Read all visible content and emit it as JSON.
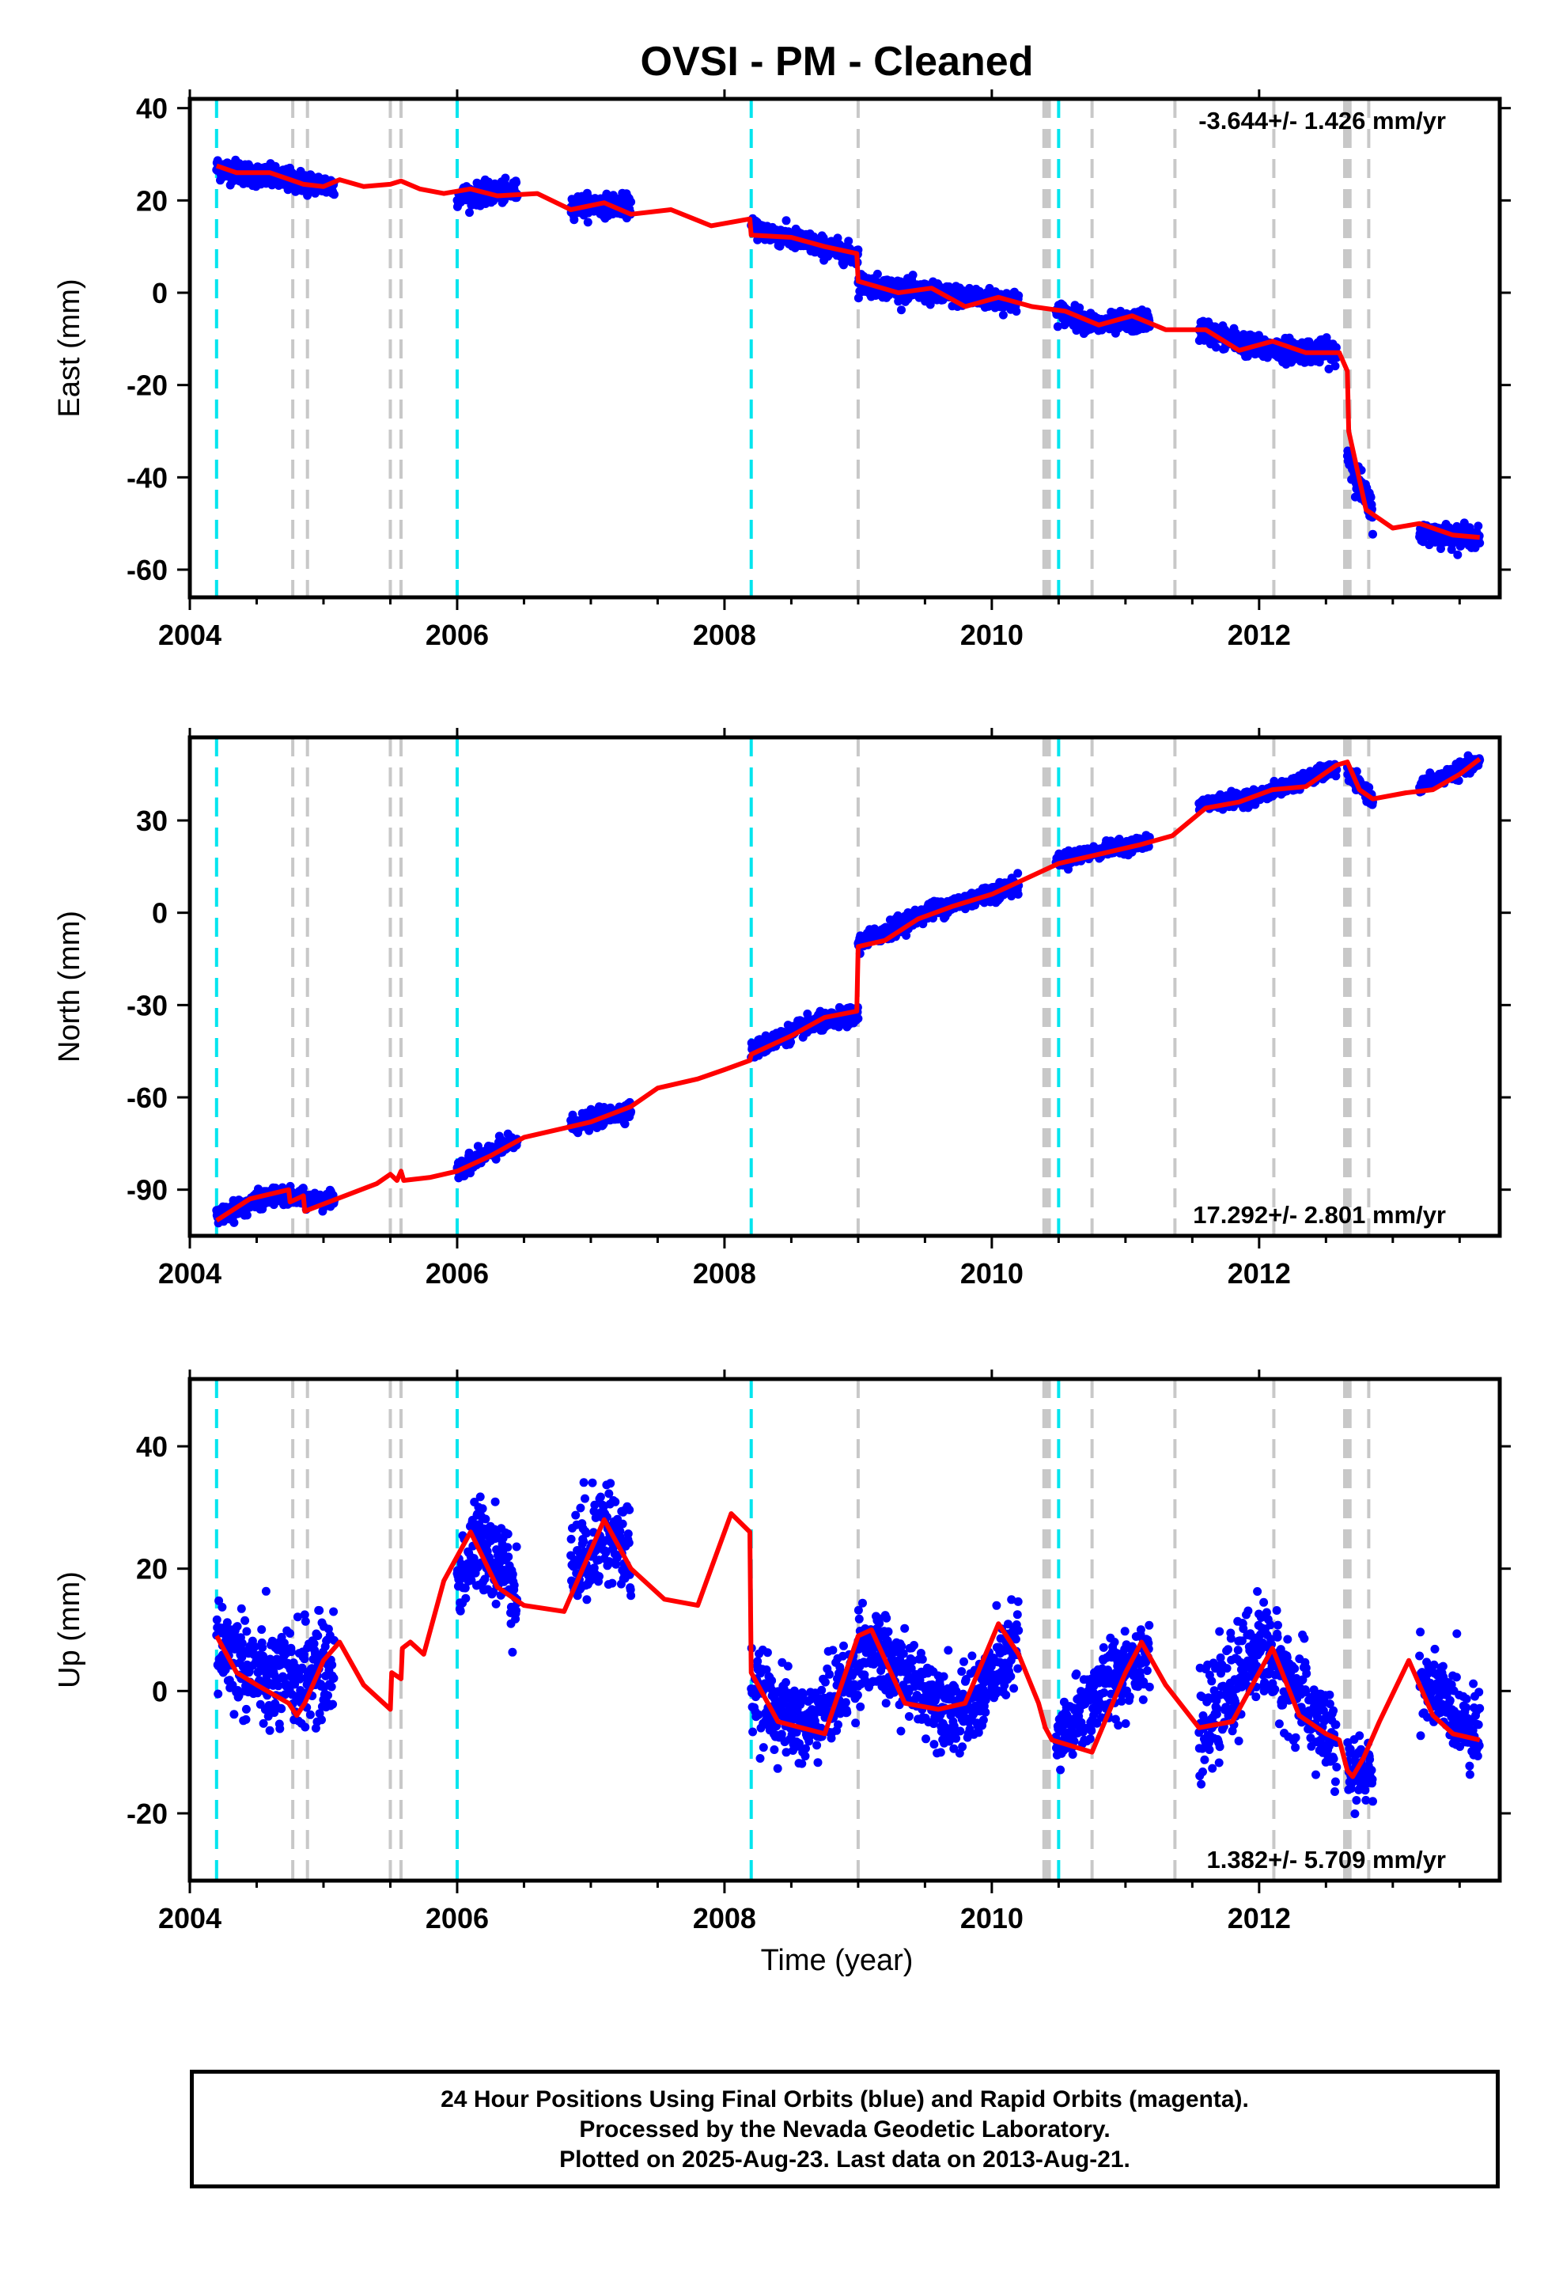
{
  "chart_data": [
    {
      "type": "scatter",
      "title": "OVSI  - PM - Cleaned",
      "ylabel": "East (mm)",
      "xlabel": "",
      "xlim": [
        2004.0,
        2013.8
      ],
      "ylim": [
        -66,
        42
      ],
      "xticks": [
        2004,
        2006,
        2008,
        2010,
        2012
      ],
      "yticks": [
        40,
        20,
        0,
        -20,
        -40,
        -60
      ],
      "grid": false,
      "rate_text": "-3.644+/- 1.426 mm/yr",
      "rate_position": "top-right",
      "marker_color": "#0000ff",
      "model_color": "#ff0000",
      "data_segments": [
        {
          "start": 2004.2,
          "end": 2005.08,
          "trend": [
            [
              2004.2,
              27
            ],
            [
              2004.6,
              25
            ],
            [
              2005.08,
              23
            ]
          ],
          "spread": 2.2
        },
        {
          "start": 2006.0,
          "end": 2006.45,
          "trend": [
            [
              2006.0,
              21
            ],
            [
              2006.45,
              22
            ]
          ],
          "spread": 2.0
        },
        {
          "start": 2006.85,
          "end": 2007.3,
          "trend": [
            [
              2006.85,
              19
            ],
            [
              2007.3,
              19
            ]
          ],
          "spread": 2.0
        },
        {
          "start": 2008.2,
          "end": 2009.0,
          "trend": [
            [
              2008.2,
              14
            ],
            [
              2008.6,
              11
            ],
            [
              2009.0,
              8
            ]
          ],
          "spread": 2.0
        },
        {
          "start": 2009.0,
          "end": 2010.2,
          "trend": [
            [
              2009.0,
              2
            ],
            [
              2009.5,
              0
            ],
            [
              2010.2,
              -2
            ]
          ],
          "spread": 2.0
        },
        {
          "start": 2010.48,
          "end": 2011.18,
          "trend": [
            [
              2010.48,
              -4
            ],
            [
              2010.8,
              -7
            ],
            [
              2011.18,
              -6
            ]
          ],
          "spread": 2.0
        },
        {
          "start": 2011.55,
          "end": 2012.58,
          "trend": [
            [
              2011.55,
              -8
            ],
            [
              2012.0,
              -12
            ],
            [
              2012.58,
              -13
            ]
          ],
          "spread": 2.2
        },
        {
          "start": 2012.66,
          "end": 2012.85,
          "trend": [
            [
              2012.66,
              -35
            ],
            [
              2012.85,
              -48
            ]
          ],
          "spread": 3.0
        },
        {
          "start": 2013.2,
          "end": 2013.65,
          "trend": [
            [
              2013.2,
              -52
            ],
            [
              2013.65,
              -53
            ]
          ],
          "spread": 2.0
        }
      ],
      "model": [
        [
          2004.2,
          27.5
        ],
        [
          2004.35,
          26.0
        ],
        [
          2004.6,
          26.0
        ],
        [
          2004.85,
          23.5
        ],
        [
          2005.0,
          23.0
        ],
        [
          2005.12,
          24.5
        ],
        [
          2005.3,
          23.0
        ],
        [
          2005.5,
          23.5
        ],
        [
          2005.58,
          24.2
        ],
        [
          2005.72,
          22.5
        ],
        [
          2005.9,
          21.5
        ],
        [
          2006.1,
          22.5
        ],
        [
          2006.3,
          21.0
        ],
        [
          2006.6,
          21.5
        ],
        [
          2006.85,
          18.0
        ],
        [
          2007.1,
          19.5
        ],
        [
          2007.3,
          17.0
        ],
        [
          2007.6,
          18.0
        ],
        [
          2007.9,
          14.5
        ],
        [
          2008.19,
          16.0
        ],
        [
          2008.2,
          12.5
        ],
        [
          2008.5,
          12.0
        ],
        [
          2008.75,
          10.0
        ],
        [
          2008.99,
          8.5
        ],
        [
          2009.0,
          2.5
        ],
        [
          2009.3,
          0.0
        ],
        [
          2009.55,
          1.0
        ],
        [
          2009.8,
          -3.0
        ],
        [
          2010.05,
          -1.0
        ],
        [
          2010.3,
          -3.0
        ],
        [
          2010.55,
          -4.0
        ],
        [
          2010.8,
          -7.0
        ],
        [
          2011.05,
          -5.0
        ],
        [
          2011.3,
          -8.0
        ],
        [
          2011.6,
          -8.0
        ],
        [
          2011.85,
          -12.5
        ],
        [
          2012.1,
          -10.5
        ],
        [
          2012.35,
          -13.0
        ],
        [
          2012.6,
          -13.0
        ],
        [
          2012.66,
          -17.0
        ],
        [
          2012.67,
          -30.0
        ],
        [
          2012.8,
          -47.0
        ],
        [
          2013.0,
          -51.0
        ],
        [
          2013.2,
          -50.0
        ],
        [
          2013.45,
          -52.5
        ],
        [
          2013.65,
          -53.0
        ]
      ]
    },
    {
      "type": "scatter",
      "title": "",
      "ylabel": "North (mm)",
      "xlabel": "",
      "xlim": [
        2004.0,
        2013.8
      ],
      "ylim": [
        -105,
        57
      ],
      "xticks": [
        2004,
        2006,
        2008,
        2010,
        2012
      ],
      "yticks": [
        30,
        0,
        -30,
        -60,
        -90
      ],
      "grid": false,
      "rate_text": "17.292+/- 2.801 mm/yr",
      "rate_position": "bottom-right",
      "marker_color": "#0000ff",
      "model_color": "#ff0000",
      "data_segments": [
        {
          "start": 2004.2,
          "end": 2005.08,
          "trend": [
            [
              2004.2,
              -99
            ],
            [
              2004.6,
              -92
            ],
            [
              2005.08,
              -94
            ]
          ],
          "spread": 2.5
        },
        {
          "start": 2006.0,
          "end": 2006.45,
          "trend": [
            [
              2006.0,
              -83
            ],
            [
              2006.45,
              -74
            ]
          ],
          "spread": 2.5
        },
        {
          "start": 2006.85,
          "end": 2007.3,
          "trend": [
            [
              2006.85,
              -69
            ],
            [
              2007.3,
              -64
            ]
          ],
          "spread": 2.5
        },
        {
          "start": 2008.2,
          "end": 2009.0,
          "trend": [
            [
              2008.2,
              -45
            ],
            [
              2008.6,
              -37
            ],
            [
              2009.0,
              -33
            ]
          ],
          "spread": 2.5
        },
        {
          "start": 2009.0,
          "end": 2010.2,
          "trend": [
            [
              2009.0,
              -10
            ],
            [
              2009.5,
              0
            ],
            [
              2010.2,
              9
            ]
          ],
          "spread": 2.5
        },
        {
          "start": 2010.48,
          "end": 2011.18,
          "trend": [
            [
              2010.48,
              17
            ],
            [
              2010.8,
              20
            ],
            [
              2011.18,
              23
            ]
          ],
          "spread": 2.0
        },
        {
          "start": 2011.55,
          "end": 2012.58,
          "trend": [
            [
              2011.55,
              35
            ],
            [
              2012.0,
              38
            ],
            [
              2012.58,
              47
            ]
          ],
          "spread": 2.0
        },
        {
          "start": 2012.66,
          "end": 2012.85,
          "trend": [
            [
              2012.66,
              45
            ],
            [
              2012.85,
              37
            ]
          ],
          "spread": 2.0
        },
        {
          "start": 2013.2,
          "end": 2013.65,
          "trend": [
            [
              2013.2,
              41
            ],
            [
              2013.65,
              49
            ]
          ],
          "spread": 2.0
        }
      ],
      "model": [
        [
          2004.2,
          -100
        ],
        [
          2004.45,
          -93
        ],
        [
          2004.74,
          -90
        ],
        [
          2004.75,
          -94
        ],
        [
          2004.85,
          -92
        ],
        [
          2004.86,
          -97
        ],
        [
          2005.1,
          -93
        ],
        [
          2005.4,
          -88
        ],
        [
          2005.5,
          -85
        ],
        [
          2005.55,
          -87
        ],
        [
          2005.58,
          -84
        ],
        [
          2005.6,
          -87
        ],
        [
          2005.8,
          -86
        ],
        [
          2006.0,
          -84
        ],
        [
          2006.25,
          -79
        ],
        [
          2006.5,
          -73
        ],
        [
          2006.8,
          -70
        ],
        [
          2007.0,
          -68
        ],
        [
          2007.3,
          -63
        ],
        [
          2007.5,
          -57
        ],
        [
          2007.8,
          -54
        ],
        [
          2008.0,
          -51
        ],
        [
          2008.19,
          -48
        ],
        [
          2008.2,
          -46
        ],
        [
          2008.5,
          -40
        ],
        [
          2008.75,
          -34
        ],
        [
          2008.99,
          -32
        ],
        [
          2009.0,
          -11
        ],
        [
          2009.2,
          -9
        ],
        [
          2009.45,
          -2
        ],
        [
          2009.7,
          2
        ],
        [
          2010.0,
          6
        ],
        [
          2010.2,
          10
        ],
        [
          2010.5,
          16
        ],
        [
          2010.8,
          19
        ],
        [
          2011.1,
          22
        ],
        [
          2011.35,
          25
        ],
        [
          2011.6,
          34
        ],
        [
          2011.85,
          36
        ],
        [
          2012.1,
          40
        ],
        [
          2012.35,
          41
        ],
        [
          2012.58,
          48
        ],
        [
          2012.66,
          49
        ],
        [
          2012.75,
          40
        ],
        [
          2012.85,
          37
        ],
        [
          2013.1,
          39
        ],
        [
          2013.3,
          40
        ],
        [
          2013.5,
          45
        ],
        [
          2013.65,
          50
        ]
      ]
    },
    {
      "type": "scatter",
      "title": "",
      "ylabel": "Up (mm)",
      "xlabel": "Time (year)",
      "xlim": [
        2004.0,
        2013.8
      ],
      "ylim": [
        -31,
        51
      ],
      "xticks": [
        2004,
        2006,
        2008,
        2010,
        2012
      ],
      "yticks": [
        40,
        20,
        0,
        -20
      ],
      "grid": false,
      "rate_text": "1.382+/- 5.709 mm/yr",
      "rate_position": "bottom-right",
      "marker_color": "#0000ff",
      "model_color": "#ff0000",
      "data_segments": [
        {
          "start": 2004.2,
          "end": 2005.08,
          "trend": [
            [
              2004.2,
              8
            ],
            [
              2004.6,
              1
            ],
            [
              2005.08,
              4
            ]
          ],
          "spread": 7.5
        },
        {
          "start": 2006.0,
          "end": 2006.45,
          "trend": [
            [
              2006.0,
              18
            ],
            [
              2006.2,
              25
            ],
            [
              2006.45,
              17
            ]
          ],
          "spread": 7.0
        },
        {
          "start": 2006.85,
          "end": 2007.3,
          "trend": [
            [
              2006.85,
              20
            ],
            [
              2007.1,
              27
            ],
            [
              2007.3,
              22
            ]
          ],
          "spread": 8.0
        },
        {
          "start": 2008.2,
          "end": 2009.0,
          "trend": [
            [
              2008.2,
              0
            ],
            [
              2008.6,
              -6
            ],
            [
              2009.0,
              3
            ]
          ],
          "spread": 6.0
        },
        {
          "start": 2009.0,
          "end": 2010.2,
          "trend": [
            [
              2009.0,
              8
            ],
            [
              2009.5,
              0
            ],
            [
              2009.8,
              -4
            ],
            [
              2010.2,
              8
            ]
          ],
          "spread": 6.0
        },
        {
          "start": 2010.48,
          "end": 2011.18,
          "trend": [
            [
              2010.48,
              -9
            ],
            [
              2010.8,
              0
            ],
            [
              2011.18,
              7
            ]
          ],
          "spread": 6.0
        },
        {
          "start": 2011.55,
          "end": 2012.58,
          "trend": [
            [
              2011.55,
              -8
            ],
            [
              2012.0,
              8
            ],
            [
              2012.58,
              -9
            ]
          ],
          "spread": 7.0
        },
        {
          "start": 2012.66,
          "end": 2012.85,
          "trend": [
            [
              2012.66,
              -14
            ],
            [
              2012.85,
              -13
            ]
          ],
          "spread": 5.0
        },
        {
          "start": 2013.2,
          "end": 2013.65,
          "trend": [
            [
              2013.2,
              2
            ],
            [
              2013.65,
              -7
            ]
          ],
          "spread": 5.5
        }
      ],
      "model": [
        [
          2004.2,
          9
        ],
        [
          2004.35,
          3
        ],
        [
          2004.5,
          1
        ],
        [
          2004.74,
          -2
        ],
        [
          2004.8,
          -4
        ],
        [
          2004.86,
          -2
        ],
        [
          2005.0,
          5
        ],
        [
          2005.12,
          8
        ],
        [
          2005.3,
          1
        ],
        [
          2005.5,
          -3
        ],
        [
          2005.51,
          3
        ],
        [
          2005.58,
          2
        ],
        [
          2005.59,
          7
        ],
        [
          2005.65,
          8
        ],
        [
          2005.75,
          6
        ],
        [
          2005.9,
          18
        ],
        [
          2006.1,
          26
        ],
        [
          2006.3,
          17
        ],
        [
          2006.5,
          14
        ],
        [
          2006.8,
          13
        ],
        [
          2007.1,
          28
        ],
        [
          2007.3,
          20
        ],
        [
          2007.55,
          15
        ],
        [
          2007.8,
          14
        ],
        [
          2008.05,
          29
        ],
        [
          2008.19,
          26
        ],
        [
          2008.2,
          3
        ],
        [
          2008.4,
          -5
        ],
        [
          2008.75,
          -7
        ],
        [
          2009.0,
          9
        ],
        [
          2009.1,
          10
        ],
        [
          2009.35,
          -2
        ],
        [
          2009.6,
          -3
        ],
        [
          2009.8,
          -2
        ],
        [
          2010.05,
          11
        ],
        [
          2010.2,
          6
        ],
        [
          2010.35,
          -2
        ],
        [
          2010.4,
          -6
        ],
        [
          2010.45,
          -8
        ],
        [
          2010.75,
          -10
        ],
        [
          2011.0,
          3
        ],
        [
          2011.12,
          8
        ],
        [
          2011.3,
          1
        ],
        [
          2011.55,
          -6
        ],
        [
          2011.8,
          -5
        ],
        [
          2012.1,
          7
        ],
        [
          2012.3,
          -4
        ],
        [
          2012.5,
          -7
        ],
        [
          2012.6,
          -8
        ],
        [
          2012.66,
          -13
        ],
        [
          2012.7,
          -14
        ],
        [
          2012.78,
          -11
        ],
        [
          2012.9,
          -5
        ],
        [
          2013.12,
          5
        ],
        [
          2013.3,
          -4
        ],
        [
          2013.45,
          -7
        ],
        [
          2013.65,
          -8
        ]
      ]
    }
  ],
  "event_lines": {
    "cyan": [
      2004.2,
      2006.0,
      2008.2,
      2010.5
    ],
    "gray": [
      2004.77,
      2004.88,
      2005.5,
      2005.58,
      2009.0,
      2010.39,
      2010.41,
      2010.43,
      2010.75,
      2011.37,
      2012.11,
      2012.64,
      2012.66,
      2012.68,
      2012.82
    ]
  },
  "footer": {
    "line1": "24 Hour Positions Using Final Orbits (blue) and Rapid Orbits (magenta).",
    "line2": "Processed by the Nevada Geodetic Laboratory.",
    "line3": "Plotted on 2025-Aug-23. Last data on 2013-Aug-21."
  }
}
